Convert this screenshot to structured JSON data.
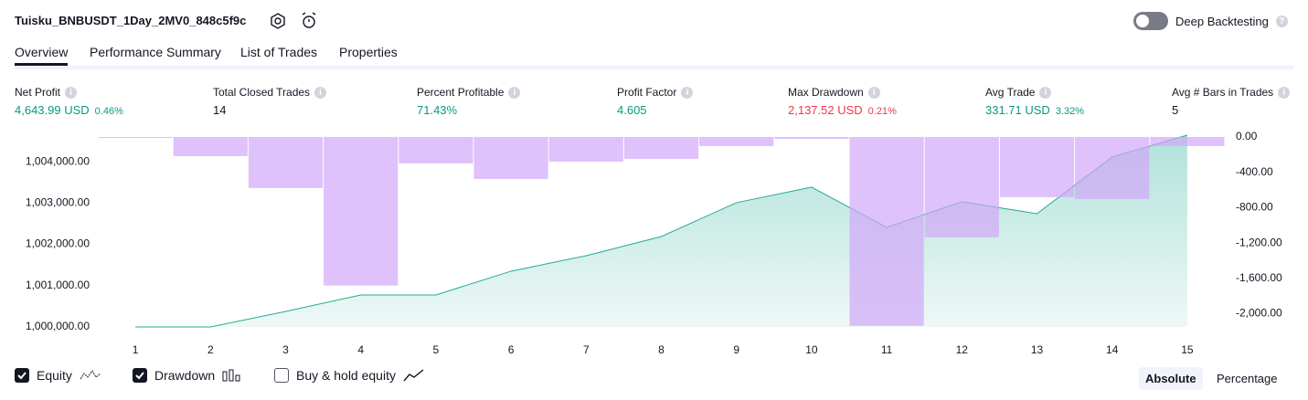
{
  "header": {
    "title": "Tuisku_BNBUSDT_1Day_2MV0_848c5f9c",
    "deep_backtesting": "Deep Backtesting",
    "deep_backtesting_on": false
  },
  "tabs": [
    "Overview",
    "Performance Summary",
    "List of Trades",
    "Properties"
  ],
  "active_tab": 0,
  "metrics": [
    {
      "label": "Net Profit",
      "value": "4,643.99 USD",
      "percent": "0.46%",
      "tone": "positive"
    },
    {
      "label": "Total Closed Trades",
      "value": "14",
      "tone": "neutral"
    },
    {
      "label": "Percent Profitable",
      "value": "71.43%",
      "tone": "positive"
    },
    {
      "label": "Profit Factor",
      "value": "4.605",
      "tone": "positive"
    },
    {
      "label": "Max Drawdown",
      "value": "2,137.52 USD",
      "percent": "0.21%",
      "tone": "negative"
    },
    {
      "label": "Avg Trade",
      "value": "331.71 USD",
      "percent": "3.32%",
      "tone": "positive"
    },
    {
      "label": "Avg # Bars in Trades",
      "value": "5",
      "tone": "neutral"
    }
  ],
  "chart_data": {
    "type": "combo",
    "x": [
      1,
      2,
      3,
      4,
      5,
      6,
      7,
      8,
      9,
      10,
      11,
      12,
      13,
      14,
      15
    ],
    "xlim": [
      0.5,
      15.5
    ],
    "xticks": [
      1,
      2,
      3,
      4,
      5,
      6,
      7,
      8,
      9,
      10,
      11,
      12,
      13,
      14,
      15
    ],
    "ylim": [
      1000000,
      1004600
    ],
    "yticks": [
      {
        "value": 1000000,
        "label": "1,000,000.00"
      },
      {
        "value": 1001000,
        "label": "1,001,000.00"
      },
      {
        "value": 1002000,
        "label": "1,002,000.00"
      },
      {
        "value": 1003000,
        "label": "1,003,000.00"
      },
      {
        "value": 1004000,
        "label": "1,004,000.00"
      }
    ],
    "y2lim": [
      -2150,
      0
    ],
    "y2ticks": [
      {
        "value": 0,
        "label": "0.00"
      },
      {
        "value": -400,
        "label": "-400.00"
      },
      {
        "value": -800,
        "label": "-800.00"
      },
      {
        "value": -1200,
        "label": "-1,200.00"
      },
      {
        "value": -1600,
        "label": "-1,600.00"
      },
      {
        "value": -2000,
        "label": "-2,000.00"
      }
    ],
    "grid": false,
    "series": [
      {
        "name": "Equity",
        "type": "area",
        "color": "#22ab94",
        "checked": true,
        "values": [
          1000000,
          1000000,
          1000376,
          1000774,
          1000774,
          1001350,
          1001726,
          1002190,
          1003009,
          1003385,
          1002412,
          1003031,
          1002743,
          1004115,
          1004644
        ]
      },
      {
        "name": "Drawdown",
        "type": "bar",
        "axis": "y2",
        "color": "#d1a6fa",
        "checked": true,
        "values": [
          -10,
          -217,
          -578,
          -1682,
          -299,
          -475,
          -279,
          -248,
          -103,
          -21,
          -2137.52,
          -1135,
          -681,
          -702,
          -103
        ]
      }
    ],
    "buy_hold": {
      "name": "Buy & hold equity",
      "checked": false
    }
  },
  "scale_modes": [
    "Absolute",
    "Percentage"
  ],
  "active_scale": 0
}
